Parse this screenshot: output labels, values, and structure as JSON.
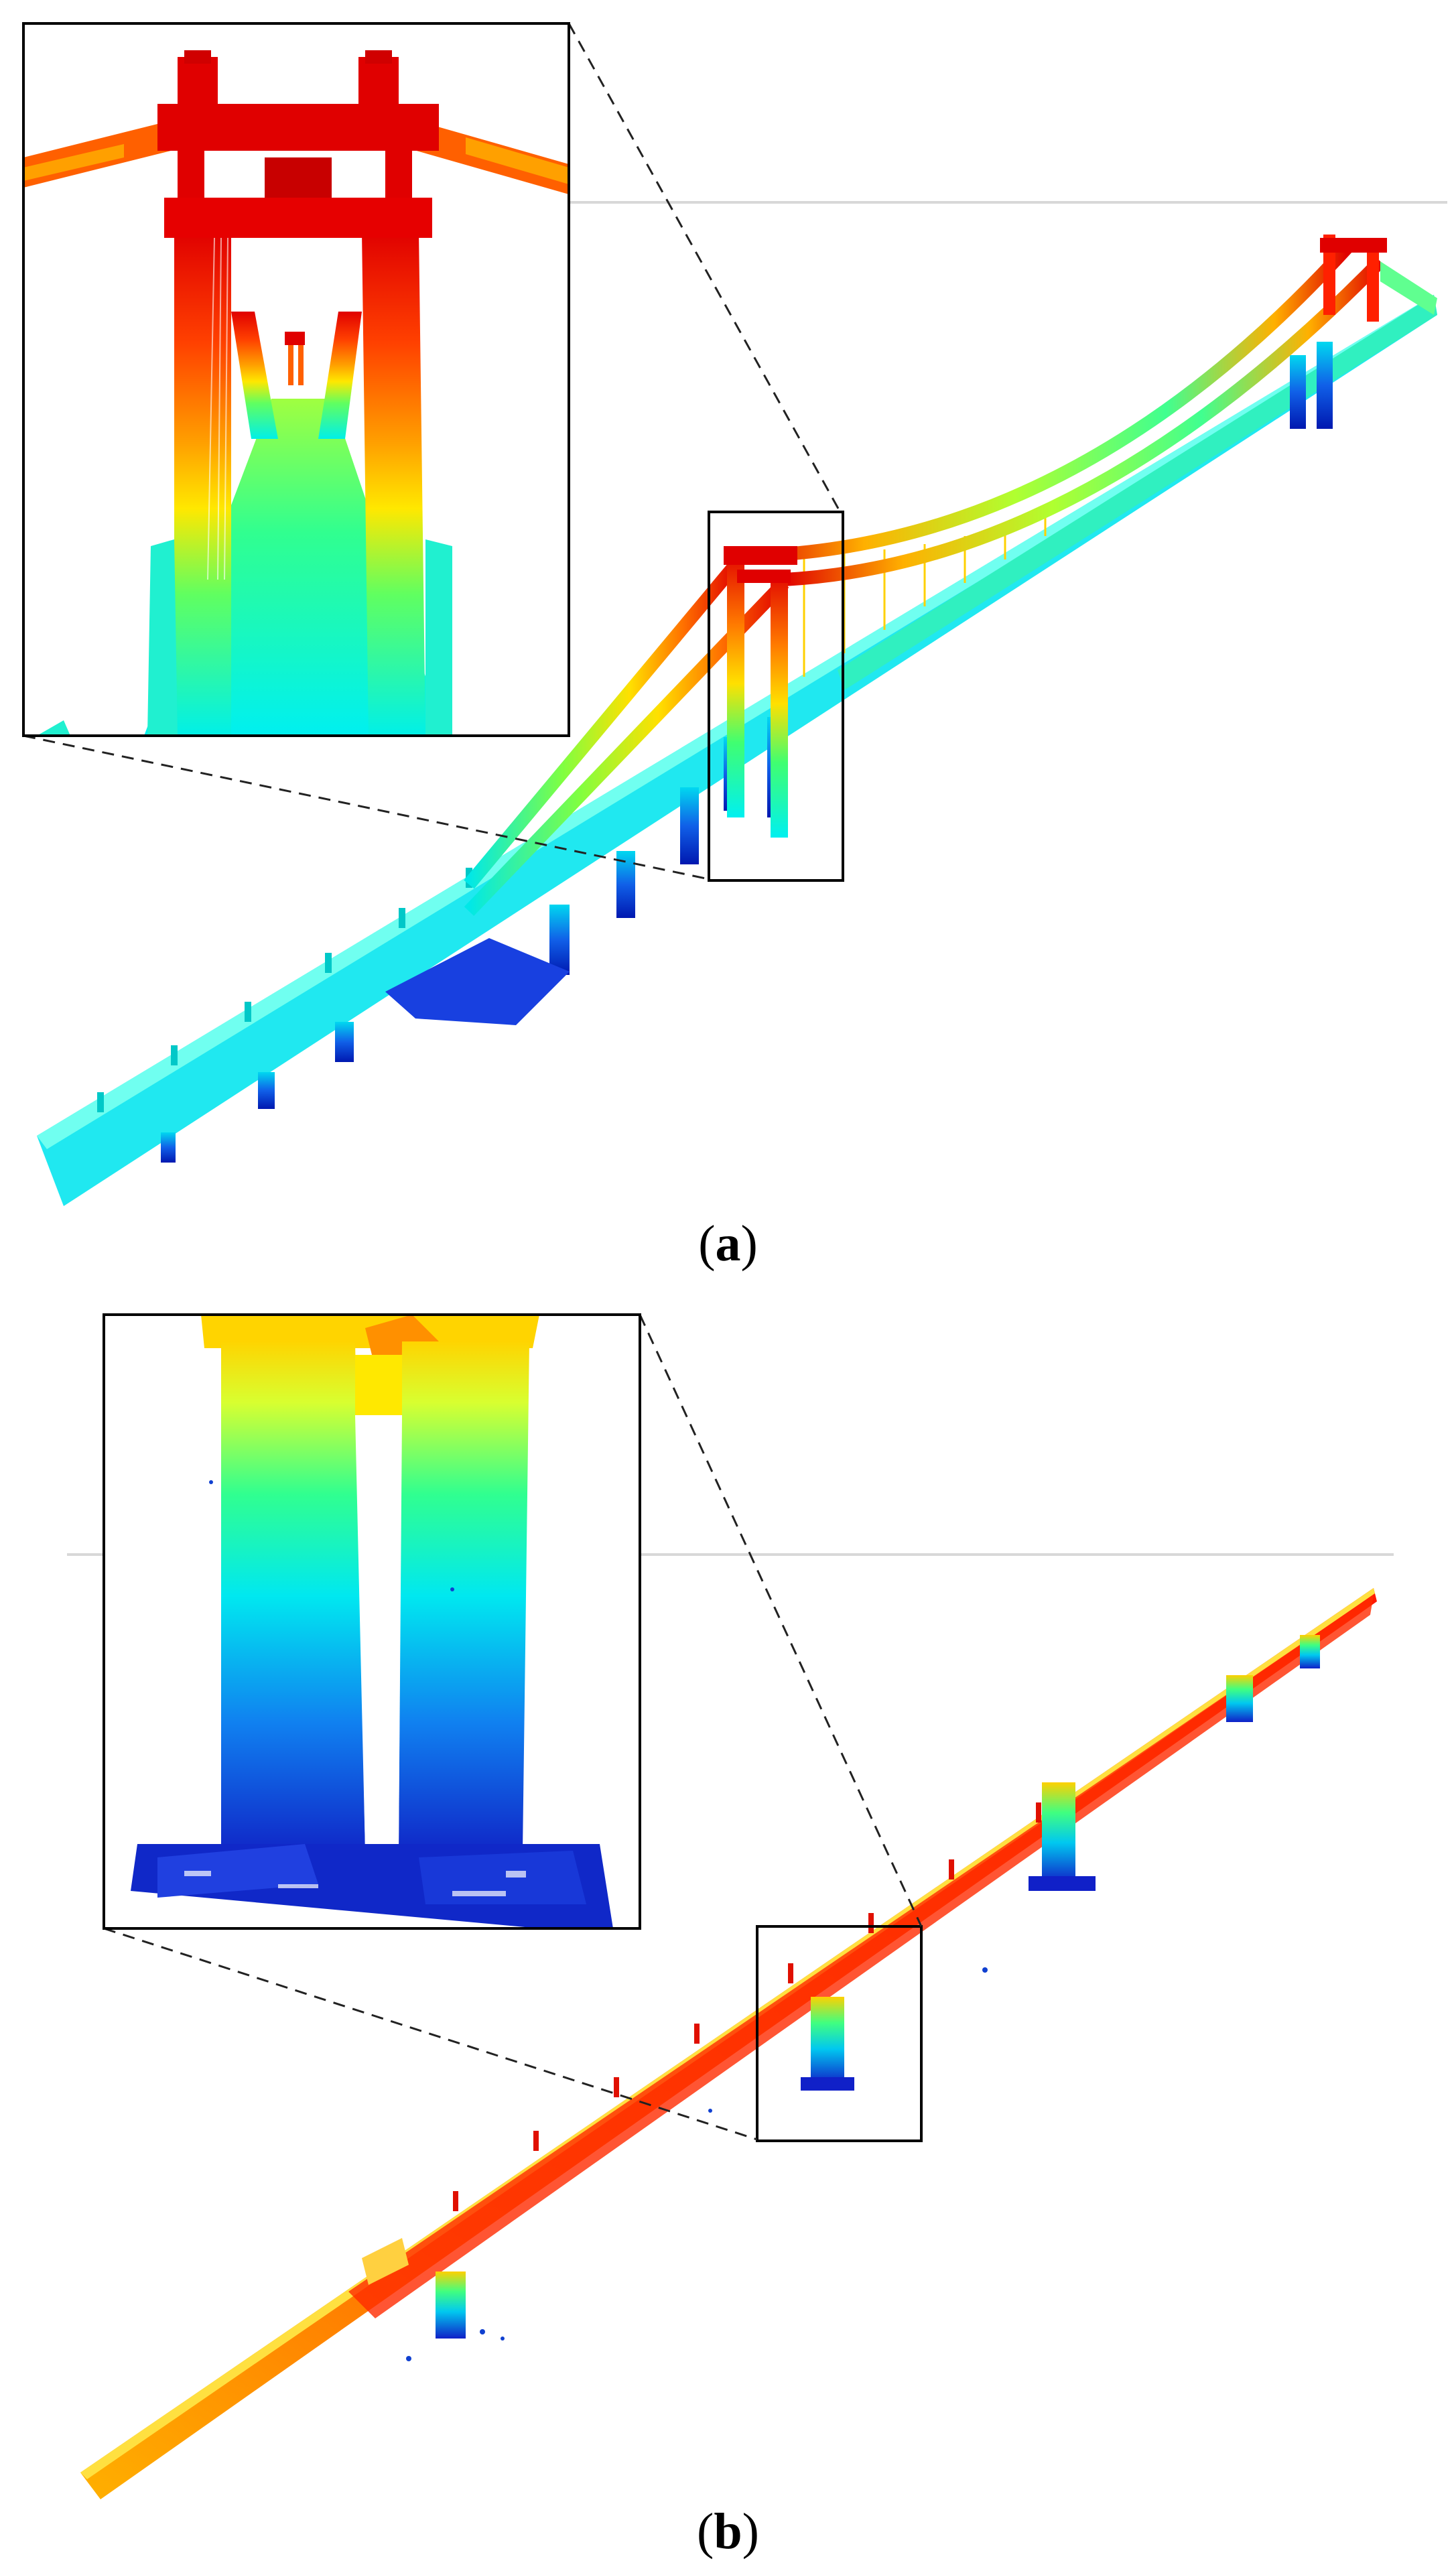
{
  "figure": {
    "panels": [
      {
        "id": "a",
        "caption_open": "(",
        "caption_letter": "a",
        "caption_close": ")",
        "subject": "point-cloud-suspension-bridge",
        "colormap": "jet",
        "inset_subject": "bridge-tower-closeup"
      },
      {
        "id": "b",
        "caption_open": "(",
        "caption_letter": "b",
        "caption_close": ")",
        "subject": "point-cloud-beam-bridge",
        "colormap": "jet",
        "inset_subject": "bridge-pier-closeup"
      }
    ],
    "colors": {
      "red": "#e60000",
      "orange": "#ff8a00",
      "yellow": "#ffd800",
      "green": "#40ff60",
      "cyan": "#00f0f0",
      "blue": "#1030d8",
      "darkblue": "#0018a8",
      "frame": "#000000",
      "horizon": "#d0d0d0"
    }
  }
}
